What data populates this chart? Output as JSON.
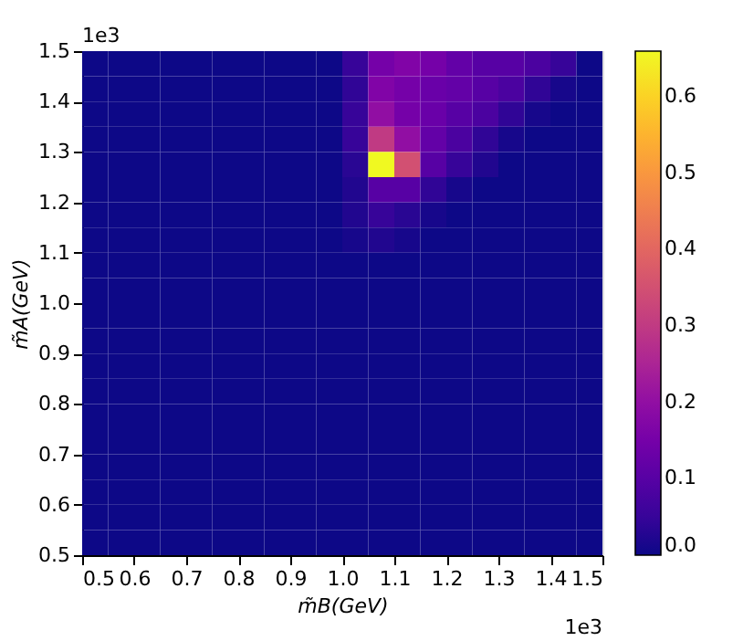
{
  "chart_data": {
    "type": "heatmap",
    "xlabel": "m̃B(GeV)",
    "ylabel": "m̃A(GeV)",
    "x": [
      0.525,
      0.575,
      0.625,
      0.675,
      0.725,
      0.775,
      0.825,
      0.875,
      0.925,
      0.975,
      1.025,
      1.075,
      1.125,
      1.175,
      1.225,
      1.275,
      1.325,
      1.375,
      1.425,
      1.475
    ],
    "y": [
      1.475,
      1.425,
      1.375,
      1.325,
      1.275,
      1.225,
      1.175,
      1.125,
      1.075,
      1.025,
      0.975,
      0.925,
      0.875,
      0.825,
      0.775,
      0.725,
      0.675,
      0.625,
      0.575,
      0.525
    ],
    "cells": [
      [
        0,
        0,
        0,
        0,
        0,
        0,
        0,
        0,
        0,
        0,
        0.05,
        0.15,
        0.17,
        0.15,
        0.12,
        0.1,
        0.1,
        0.08,
        0.05,
        0
      ],
      [
        0,
        0,
        0,
        0,
        0,
        0,
        0,
        0,
        0,
        0,
        0.04,
        0.17,
        0.15,
        0.13,
        0.12,
        0.1,
        0.08,
        0.04,
        0.01,
        0
      ],
      [
        0,
        0,
        0,
        0,
        0,
        0,
        0,
        0,
        0,
        0,
        0.05,
        0.2,
        0.15,
        0.13,
        0.1,
        0.08,
        0.04,
        0.01,
        0,
        0
      ],
      [
        0,
        0,
        0,
        0,
        0,
        0,
        0,
        0,
        0,
        0,
        0.05,
        0.3,
        0.2,
        0.12,
        0.08,
        0.04,
        0.01,
        0,
        0,
        0
      ],
      [
        0,
        0,
        0,
        0,
        0,
        0,
        0,
        0,
        0,
        0,
        0.03,
        0.66,
        0.35,
        0.1,
        0.05,
        0.02,
        0,
        0,
        0,
        0
      ],
      [
        0,
        0,
        0,
        0,
        0,
        0,
        0,
        0,
        0,
        0,
        0.02,
        0.1,
        0.1,
        0.04,
        0.01,
        0,
        0,
        0,
        0,
        0
      ],
      [
        0,
        0,
        0,
        0,
        0,
        0,
        0,
        0,
        0,
        0,
        0.02,
        0.05,
        0.03,
        0.01,
        0,
        0,
        0,
        0,
        0,
        0
      ],
      [
        0,
        0,
        0,
        0,
        0,
        0,
        0,
        0,
        0,
        0,
        0.01,
        0.02,
        0.01,
        0,
        0,
        0,
        0,
        0,
        0,
        0
      ],
      [
        0,
        0,
        0,
        0,
        0,
        0,
        0,
        0,
        0,
        0,
        0,
        0,
        0,
        0,
        0,
        0,
        0,
        0,
        0,
        0
      ],
      [
        0,
        0,
        0,
        0,
        0,
        0,
        0,
        0,
        0,
        0,
        0,
        0,
        0,
        0,
        0,
        0,
        0,
        0,
        0,
        0
      ],
      [
        0,
        0,
        0,
        0,
        0,
        0,
        0,
        0,
        0,
        0,
        0,
        0,
        0,
        0,
        0,
        0,
        0,
        0,
        0,
        0
      ],
      [
        0,
        0,
        0,
        0,
        0,
        0,
        0,
        0,
        0,
        0,
        0,
        0,
        0,
        0,
        0,
        0,
        0,
        0,
        0,
        0
      ],
      [
        0,
        0,
        0,
        0,
        0,
        0,
        0,
        0,
        0,
        0,
        0,
        0,
        0,
        0,
        0,
        0,
        0,
        0,
        0,
        0
      ],
      [
        0,
        0,
        0,
        0,
        0,
        0,
        0,
        0,
        0,
        0,
        0,
        0,
        0,
        0,
        0,
        0,
        0,
        0,
        0,
        0
      ],
      [
        0,
        0,
        0,
        0,
        0,
        0,
        0,
        0,
        0,
        0,
        0,
        0,
        0,
        0,
        0,
        0,
        0,
        0,
        0,
        0
      ],
      [
        0,
        0,
        0,
        0,
        0,
        0,
        0,
        0,
        0,
        0,
        0,
        0,
        0,
        0,
        0,
        0,
        0,
        0,
        0,
        0
      ],
      [
        0,
        0,
        0,
        0,
        0,
        0,
        0,
        0,
        0,
        0,
        0,
        0,
        0,
        0,
        0,
        0,
        0,
        0,
        0,
        0
      ],
      [
        0,
        0,
        0,
        0,
        0,
        0,
        0,
        0,
        0,
        0,
        0,
        0,
        0,
        0,
        0,
        0,
        0,
        0,
        0,
        0
      ],
      [
        0,
        0,
        0,
        0,
        0,
        0,
        0,
        0,
        0,
        0,
        0,
        0,
        0,
        0,
        0,
        0,
        0,
        0,
        0,
        0
      ],
      [
        0,
        0,
        0,
        0,
        0,
        0,
        0,
        0,
        0,
        0,
        0,
        0,
        0,
        0,
        0,
        0,
        0,
        0,
        0,
        0
      ]
    ],
    "xlim": [
      0.5,
      1.5
    ],
    "ylim": [
      0.5,
      1.5
    ],
    "xticks": [
      0.5,
      0.6,
      0.7,
      0.8,
      0.9,
      {
        "value": 1.0,
        "label": "1.0"
      },
      1.1,
      1.2,
      1.3,
      1.4,
      1.5
    ],
    "yticks": [
      0.5,
      0.6,
      0.7,
      0.8,
      0.9,
      {
        "value": 1.0,
        "label": "1.0"
      },
      1.1,
      1.2,
      1.3,
      1.4,
      1.5
    ],
    "clim": [
      0,
      0.66
    ],
    "cticks": [
      {
        "value": 0,
        "label": "0.0"
      },
      0.1,
      0.2,
      0.3,
      0.4,
      0.5,
      0.6
    ],
    "annotations": [
      "1e3",
      "1e3"
    ]
  }
}
